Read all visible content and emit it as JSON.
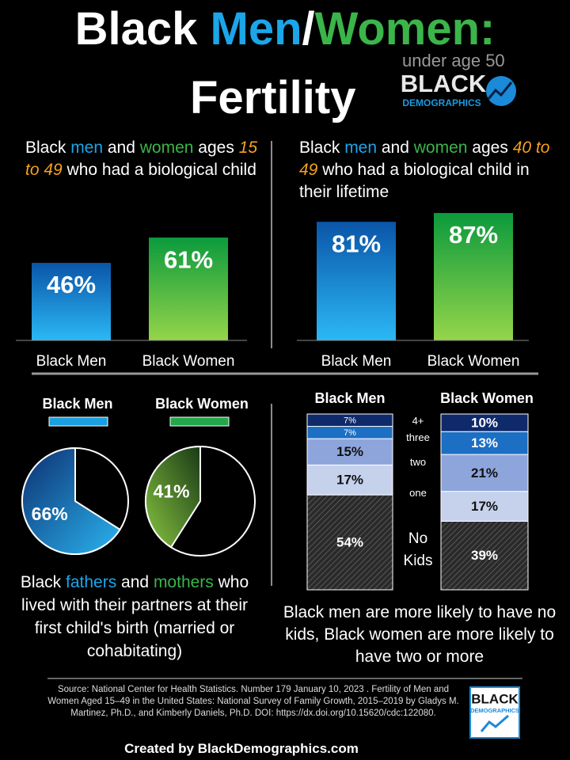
{
  "header": {
    "title_parts": [
      "Black ",
      "Men",
      "/",
      "Women:"
    ],
    "title_line2": "Fertility",
    "subtitle": "under age 50",
    "logo": [
      "BLACK",
      "DEMOGRAPHICS"
    ]
  },
  "chart_data": [
    {
      "type": "bar",
      "title": [
        "Black ",
        "men",
        " and ",
        "women",
        " ages ",
        "15 to 49",
        " who had a biological child"
      ],
      "categories": [
        "Black Men",
        "Black Women"
      ],
      "values": [
        46,
        61
      ],
      "value_labels": [
        "46%",
        "61%"
      ],
      "ylim": [
        0,
        100
      ]
    },
    {
      "type": "bar",
      "title": [
        "Black ",
        "men",
        " and ",
        "women",
        " ages ",
        "40 to 49",
        " who had a biological child in their lifetime"
      ],
      "categories": [
        "Black Men",
        "Black Women"
      ],
      "values": [
        81,
        87
      ],
      "value_labels": [
        "81%",
        "87%"
      ],
      "ylim": [
        0,
        100
      ]
    },
    {
      "type": "pie",
      "series": [
        {
          "name": "Black Men",
          "color": "#1a9fe0",
          "values": [
            66
          ],
          "value_labels": [
            "66%"
          ]
        },
        {
          "name": "Black Women",
          "color": "#22a84a",
          "values": [
            41
          ],
          "value_labels": [
            "41%"
          ]
        }
      ],
      "caption": [
        "Black ",
        "fathers",
        " and ",
        "mothers",
        " who lived with their partners at their first child's birth (married or cohabitating)"
      ]
    },
    {
      "type": "stacked_bar",
      "categories": [
        "Black Men",
        "Black Women"
      ],
      "ylim": [
        0,
        100
      ],
      "series": [
        {
          "name": "No Kids",
          "color": "#333333",
          "label_color": "#ffffff",
          "values": [
            54,
            39
          ],
          "value_labels": [
            "54%",
            "39%"
          ]
        },
        {
          "name": "one",
          "color": "#c6d1ec",
          "label_color": "#111111",
          "values": [
            17,
            17
          ],
          "value_labels": [
            "17%",
            "17%"
          ]
        },
        {
          "name": "two",
          "color": "#8ea5dc",
          "label_color": "#111111",
          "values": [
            15,
            21
          ],
          "value_labels": [
            "15%",
            "21%"
          ]
        },
        {
          "name": "three",
          "color": "#1c6fc2",
          "label_color": "#ffffff",
          "values": [
            7,
            13
          ],
          "value_labels": [
            "7%",
            "13%"
          ]
        },
        {
          "name": "4+",
          "color": "#0f2a6b",
          "label_color": "#ffffff",
          "values": [
            7,
            10
          ],
          "value_labels": [
            "7%",
            "10%"
          ]
        }
      ],
      "caption": "Black men are more likely to have no kids, Black women are more likely to have two or more"
    }
  ],
  "footer": {
    "source": "Source: National Center for Health Statistics. Number 179 January 10, 2023 . Fertility of Men and Women Aged 15–49 in the United States: National Survey of Family Growth, 2015–2019 by Gladys M. Martinez, Ph.D., and Kimberly Daniels, Ph.D. DOI: https://dx.doi.org/10.15620/cdc:122080.",
    "credit": [
      "Created by ",
      "BlackDemographics",
      ".com"
    ]
  }
}
